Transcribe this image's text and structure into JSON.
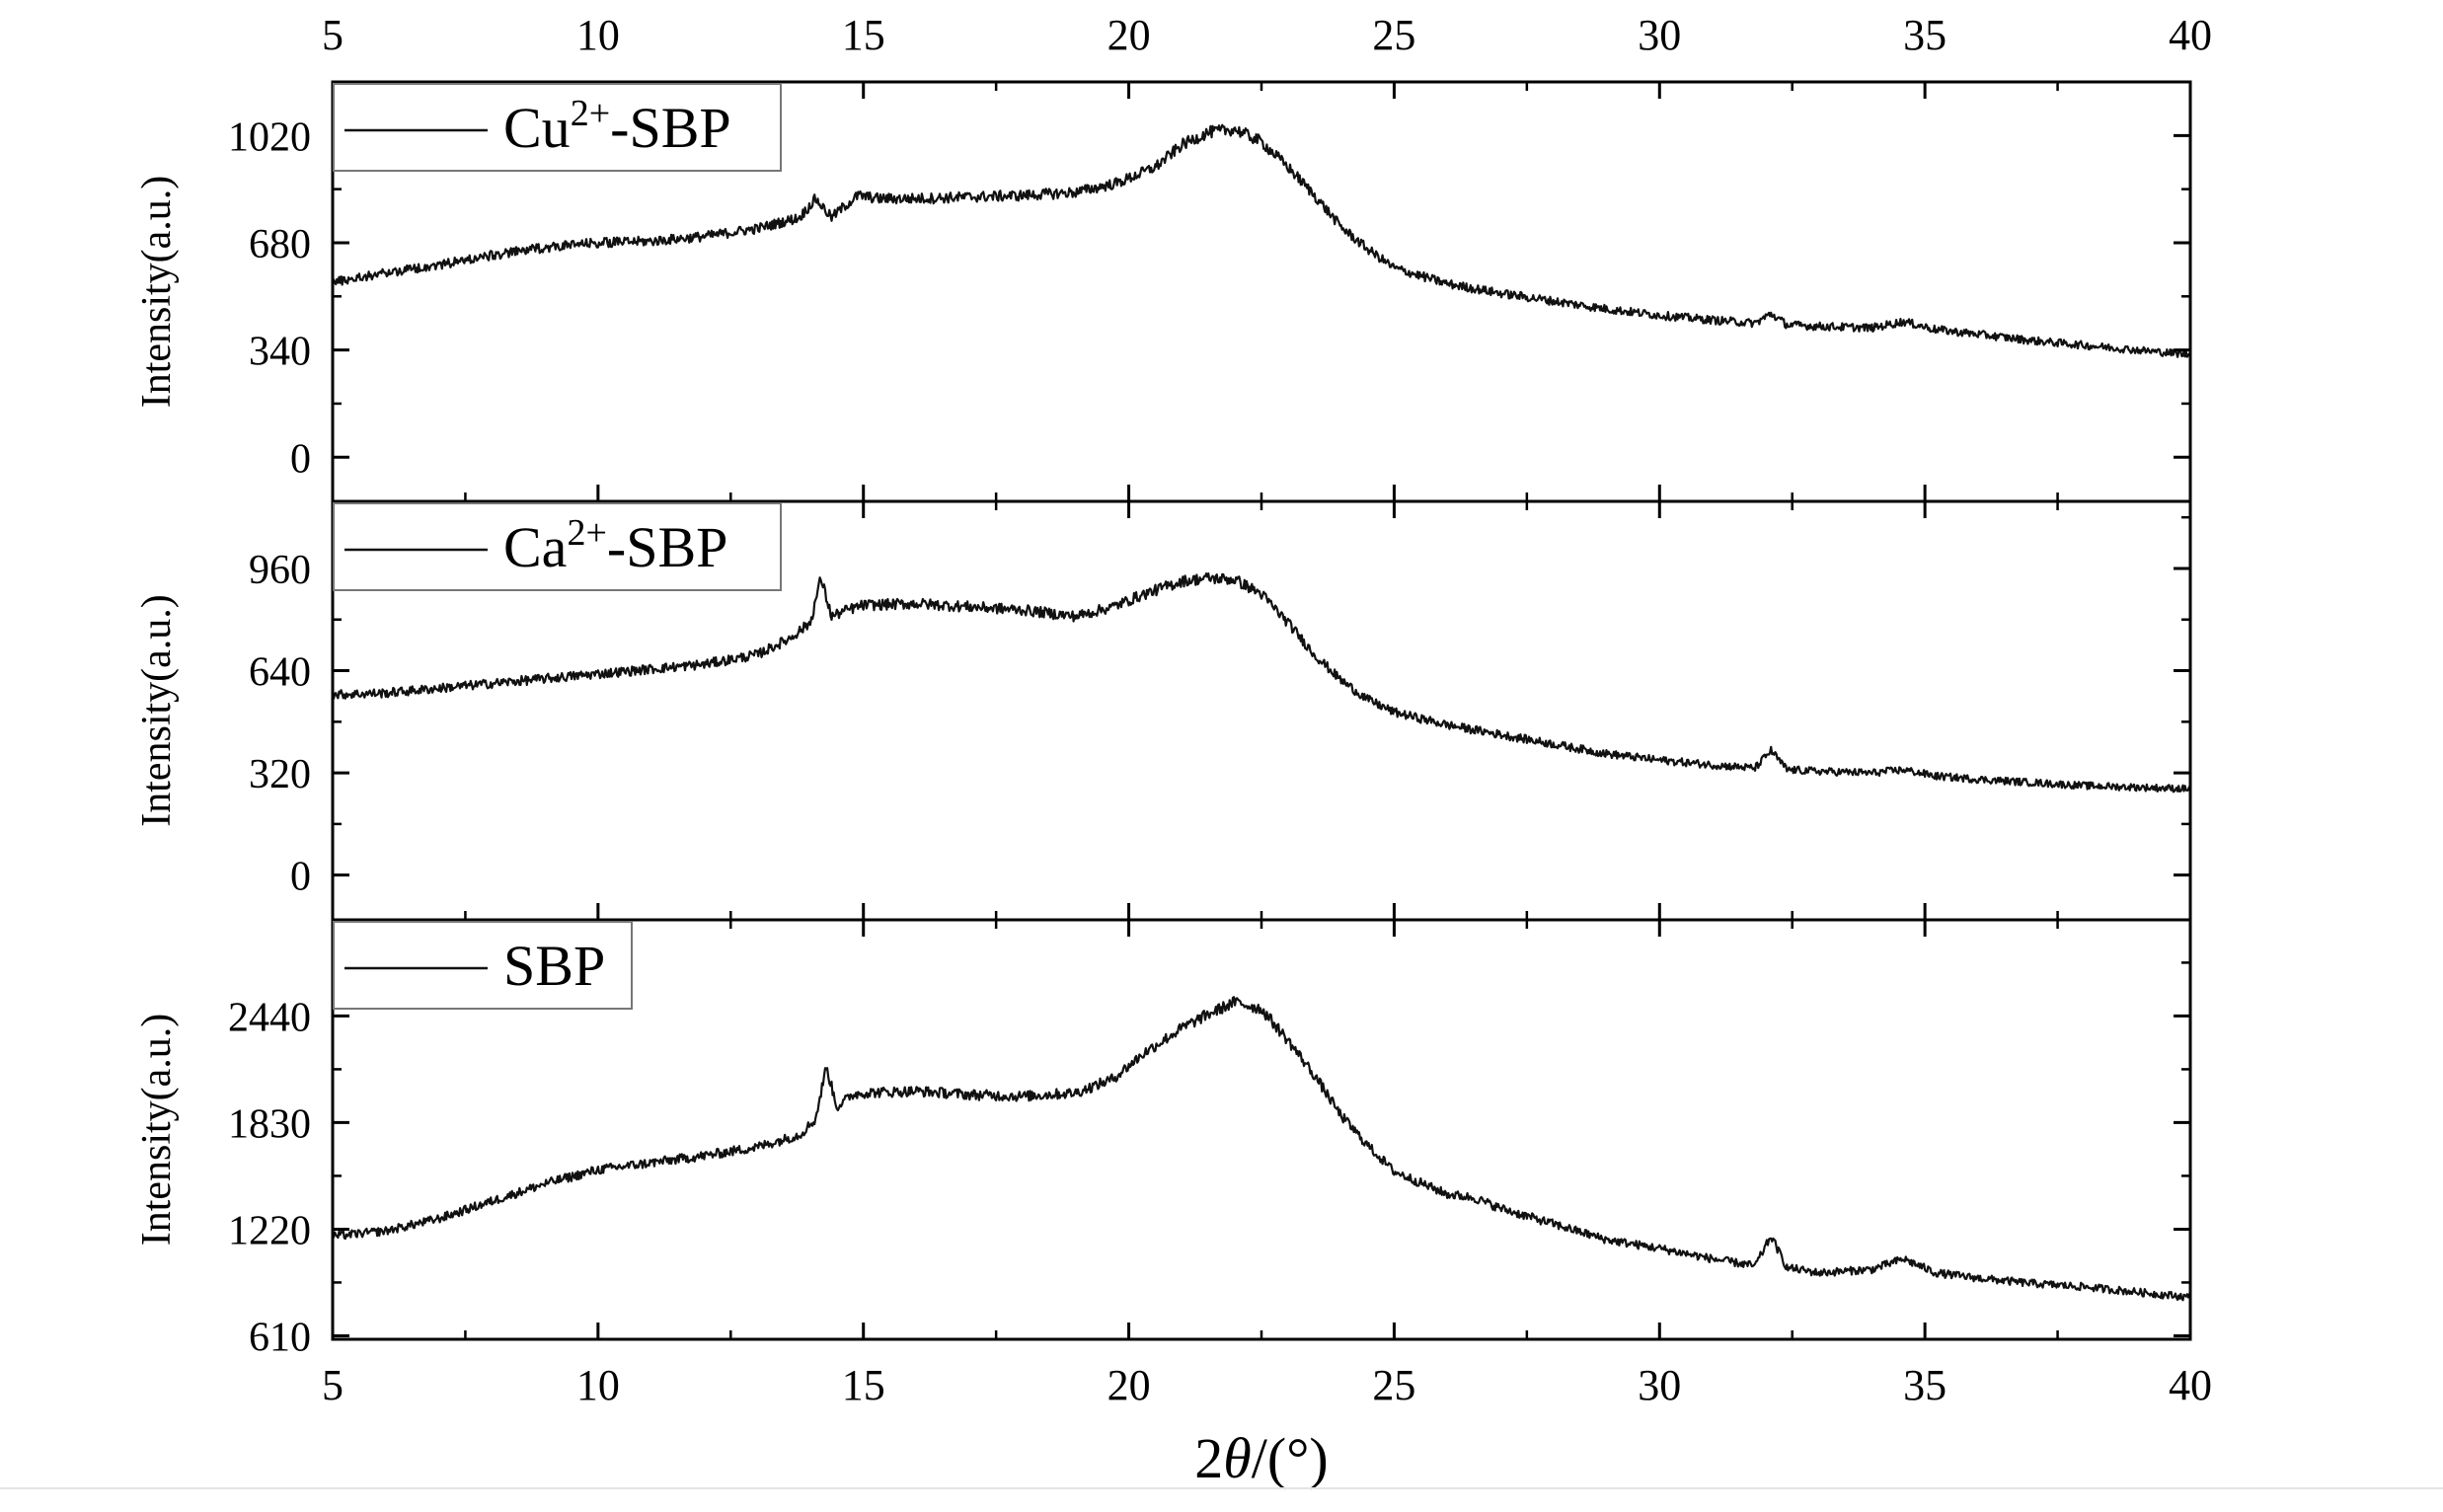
{
  "chart_data": {
    "type": "line",
    "x_axis": {
      "label": "2θ/(°)",
      "label_prefix": "2",
      "label_theta": "θ",
      "label_suffix": "/(°)",
      "range": [
        5,
        40
      ],
      "ticks": [
        "5",
        "10",
        "15",
        "20",
        "25",
        "30",
        "35",
        "40"
      ],
      "tick_values": [
        5,
        10,
        15,
        20,
        25,
        30,
        35,
        40
      ]
    },
    "panels": [
      {
        "legend": {
          "name": "Cu2+-SBP",
          "base": "Cu",
          "sup": "2+",
          "rest": "-SBP"
        },
        "ylabel": "Intensity(a.u.)",
        "ylim": [
          -140,
          1190
        ],
        "yticks": [
          "1020",
          "680",
          "340",
          "0"
        ],
        "ytick_values": [
          1020,
          680,
          340,
          0
        ],
        "series": {
          "x": [
            5,
            6,
            7,
            8,
            9,
            10,
            11,
            12,
            13,
            13.8,
            14.1,
            14.4,
            14.6,
            14.9,
            15.3,
            16,
            17,
            18,
            19,
            19.8,
            20.5,
            21,
            21.5,
            22,
            22.5,
            23,
            23.5,
            24,
            24.5,
            25,
            26,
            27,
            28,
            29,
            30,
            31,
            31.8,
            32.1,
            32.4,
            33,
            34,
            34.6,
            35.2,
            36,
            37,
            38,
            39,
            40
          ],
          "y": [
            555,
            585,
            610,
            640,
            665,
            680,
            685,
            700,
            725,
            760,
            820,
            760,
            790,
            830,
            820,
            820,
            825,
            830,
            840,
            870,
            920,
            990,
            1030,
            1040,
            1000,
            920,
            830,
            730,
            660,
            600,
            550,
            520,
            495,
            470,
            450,
            435,
            425,
            455,
            420,
            415,
            410,
            430,
            405,
            390,
            370,
            355,
            340,
            325
          ]
        }
      },
      {
        "legend": {
          "name": "Ca2+-SBP",
          "base": "Ca",
          "sup": "2+",
          "rest": "-SBP"
        },
        "ylabel": "Intensity(a.u.)",
        "ylim": [
          -140,
          1170
        ],
        "yticks": [
          "960",
          "640",
          "320",
          "0"
        ],
        "ytick_values": [
          960,
          640,
          320,
          0
        ],
        "series": {
          "x": [
            5,
            6,
            7,
            8,
            9,
            10,
            11,
            12,
            13,
            13.6,
            14,
            14.2,
            14.4,
            14.7,
            15,
            16,
            17,
            18,
            19,
            19.7,
            20.3,
            21,
            21.5,
            22,
            22.5,
            23,
            23.5,
            24,
            24.5,
            25,
            26,
            27,
            28,
            29,
            30,
            31,
            31.8,
            32.1,
            32.4,
            33,
            34,
            34.6,
            35.2,
            36,
            37,
            38,
            39,
            40
          ],
          "y": [
            565,
            570,
            585,
            600,
            615,
            630,
            645,
            660,
            690,
            740,
            790,
            930,
            810,
            830,
            845,
            850,
            840,
            830,
            810,
            840,
            880,
            920,
            930,
            925,
            880,
            790,
            690,
            610,
            550,
            510,
            470,
            440,
            410,
            380,
            360,
            345,
            335,
            390,
            330,
            325,
            320,
            330,
            310,
            300,
            290,
            280,
            275,
            270
          ]
        }
      },
      {
        "legend": {
          "name": "SBP"
        },
        "ylabel": "Intensity(a.u.)",
        "ylim": [
          590,
          2990
        ],
        "yticks": [
          "2440",
          "1830",
          "1220",
          "610"
        ],
        "ytick_values": [
          2440,
          1830,
          1220,
          610
        ],
        "series": {
          "x": [
            5,
            6,
            7,
            8,
            9,
            10,
            11,
            12,
            13,
            13.8,
            14.1,
            14.3,
            14.5,
            14.8,
            15,
            16,
            17,
            18,
            19,
            19.7,
            20.3,
            21,
            21.5,
            22,
            22.5,
            23,
            23.5,
            24,
            24.5,
            25,
            26,
            26.5,
            27,
            28,
            29,
            30,
            31,
            31.8,
            32.1,
            32.4,
            33,
            34,
            34.6,
            35.2,
            36,
            37,
            38,
            39,
            40
          ],
          "y": [
            1180,
            1210,
            1280,
            1380,
            1480,
            1560,
            1600,
            1640,
            1690,
            1760,
            1850,
            2150,
            1920,
            1990,
            2000,
            2010,
            1990,
            1980,
            2000,
            2080,
            2230,
            2370,
            2450,
            2520,
            2480,
            2300,
            2100,
            1870,
            1700,
            1550,
            1420,
            1400,
            1340,
            1250,
            1160,
            1110,
            1050,
            1010,
            1180,
            1000,
            970,
            990,
            1050,
            970,
            940,
            910,
            890,
            860,
            830
          ]
        }
      }
    ],
    "grid": false,
    "legend_placement": "top-left"
  }
}
